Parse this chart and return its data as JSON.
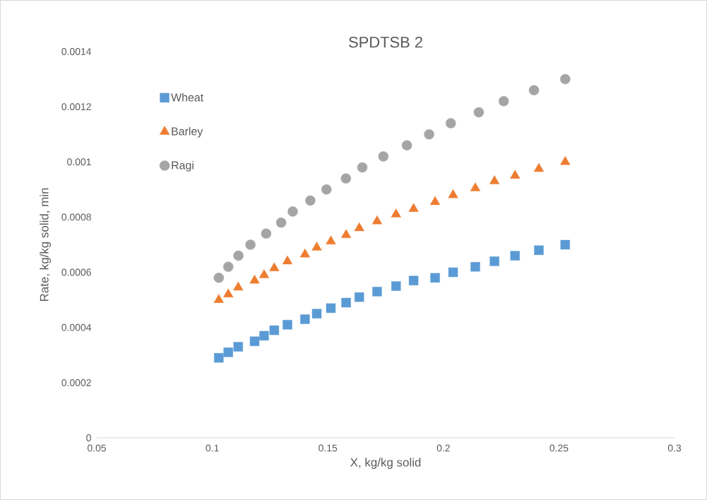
{
  "chart_data": {
    "type": "scatter",
    "title": "SPDTSB 2",
    "xlabel": "X, kg/kg solid",
    "ylabel": "Rate, kg/kg solid, min",
    "xlim": [
      0.05,
      0.3
    ],
    "xticks": [
      0.05,
      0.1,
      0.15,
      0.2,
      0.25,
      0.3
    ],
    "ylim": [
      0,
      0.0014
    ],
    "yticks": [
      0,
      0.0002,
      0.0004,
      0.0006,
      0.0008,
      0.001,
      0.0012,
      0.0014
    ],
    "grid": false,
    "legend": "top left",
    "series": [
      {
        "name": "Wheat",
        "color": "#5b9bd5",
        "marker": "square",
        "x": [
          0.1028,
          0.1069,
          0.1112,
          0.1183,
          0.1224,
          0.1268,
          0.1325,
          0.1401,
          0.1452,
          0.1513,
          0.1579,
          0.1636,
          0.1713,
          0.1795,
          0.1871,
          0.1964,
          0.2042,
          0.2138,
          0.2221,
          0.231,
          0.2413,
          0.2527
        ],
        "values": [
          0.00029,
          0.00031,
          0.00033,
          0.00035,
          0.00037,
          0.00039,
          0.00041,
          0.00043,
          0.00045,
          0.00047,
          0.00049,
          0.00051,
          0.00053,
          0.00055,
          0.00057,
          0.00058,
          0.0006,
          0.00062,
          0.00064,
          0.00066,
          0.00068,
          0.0007
        ]
      },
      {
        "name": "Barley",
        "color": "#ed7d31",
        "marker": "triangle",
        "x": [
          0.1028,
          0.1069,
          0.1112,
          0.1183,
          0.1224,
          0.1268,
          0.1325,
          0.1401,
          0.1452,
          0.1513,
          0.1579,
          0.1636,
          0.1713,
          0.1795,
          0.1871,
          0.1964,
          0.2042,
          0.2138,
          0.2221,
          0.231,
          0.2413,
          0.2527
        ],
        "values": [
          0.0005,
          0.00052,
          0.000545,
          0.00057,
          0.00059,
          0.000615,
          0.00064,
          0.000665,
          0.00069,
          0.000712,
          0.000735,
          0.00076,
          0.000785,
          0.00081,
          0.00083,
          0.000855,
          0.00088,
          0.000905,
          0.00093,
          0.00095,
          0.000975,
          0.001
        ]
      },
      {
        "name": "Ragi",
        "color": "#a5a5a5",
        "marker": "circle",
        "x": [
          0.1028,
          0.1069,
          0.1113,
          0.1165,
          0.1233,
          0.1298,
          0.1348,
          0.1424,
          0.1494,
          0.1578,
          0.1649,
          0.174,
          0.1842,
          0.1938,
          0.2032,
          0.2153,
          0.2261,
          0.2392,
          0.2527
        ],
        "values": [
          0.00058,
          0.00062,
          0.00066,
          0.0007,
          0.00074,
          0.00078,
          0.00082,
          0.00086,
          0.0009,
          0.00094,
          0.00098,
          0.00102,
          0.00106,
          0.0011,
          0.00114,
          0.00118,
          0.00122,
          0.00126,
          0.0013
        ]
      }
    ]
  }
}
